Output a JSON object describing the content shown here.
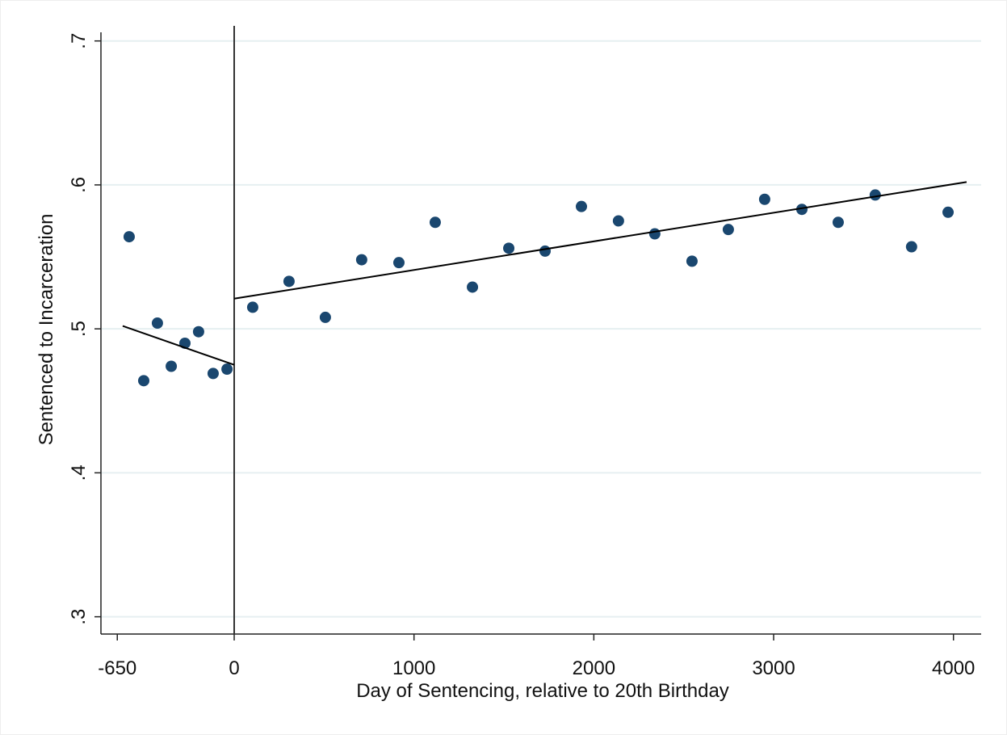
{
  "chart_data": {
    "type": "scatter",
    "x_label": "Day of Sentencing, relative to 20th Birthday",
    "y_label": "Sentenced to Incarceration",
    "xlim": [
      -741,
      4154
    ],
    "ylim": [
      0.288,
      0.706
    ],
    "xticks": [
      -650,
      0,
      1000,
      2000,
      3000,
      4000
    ],
    "yticks": [
      {
        "value": 0.3,
        "label": ".3"
      },
      {
        "value": 0.4,
        "label": ".4"
      },
      {
        "value": 0.5,
        "label": ".5"
      },
      {
        "value": 0.6,
        "label": ".6"
      },
      {
        "value": 0.7,
        "label": ".7"
      }
    ],
    "grid": true,
    "grid_color": "#e6eff1",
    "reference_line_x": 0,
    "series": [
      {
        "color": "#1a476f",
        "x": [
          -584,
          -503,
          -427,
          -350,
          -274,
          -198,
          -117,
          -40,
          103,
          305,
          507,
          709,
          916,
          1118,
          1325,
          1527,
          1729,
          1931,
          2137,
          2339,
          2546,
          2748,
          2950,
          3157,
          3359,
          3565,
          3767,
          3970
        ],
        "values": [
          0.564,
          0.464,
          0.504,
          0.474,
          0.49,
          0.498,
          0.469,
          0.472,
          0.515,
          0.533,
          0.508,
          0.548,
          0.546,
          0.574,
          0.529,
          0.556,
          0.554,
          0.585,
          0.575,
          0.566,
          0.547,
          0.569,
          0.59,
          0.583,
          0.574,
          0.593,
          0.557,
          0.581
        ]
      }
    ],
    "fit_lines": [
      {
        "color": "#000000",
        "x": [
          -620,
          0
        ],
        "values": [
          0.502,
          0.475
        ]
      },
      {
        "color": "#000000",
        "x": [
          0,
          4073
        ],
        "values": [
          0.521,
          0.602
        ]
      }
    ]
  }
}
